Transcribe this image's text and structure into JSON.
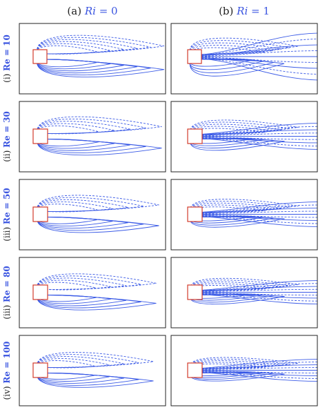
{
  "columns": [
    {
      "prefix": "(a) ",
      "param": "Ri",
      "eq": " = 0",
      "ri": 0
    },
    {
      "prefix": "(b) ",
      "param": "Ri",
      "eq": " = 1",
      "ri": 1
    }
  ],
  "rows": [
    {
      "roman": "(i) ",
      "re_text": "Re = 10",
      "re": 10
    },
    {
      "roman": "(ii) ",
      "re_text": "Re = 30",
      "re": 30
    },
    {
      "roman": "(iii) ",
      "re_text": "Re = 50",
      "re": 50
    },
    {
      "roman": "(iii) ",
      "re_text": "Re = 80",
      "re": 80
    },
    {
      "roman": "(iv) ",
      "re_text": "Re = 100",
      "re": 100
    }
  ],
  "colors": {
    "contour": "#3a5ae6",
    "cylinder": "#d23a2a",
    "frame": "#222222",
    "label_accent": "#3b55e0"
  }
}
